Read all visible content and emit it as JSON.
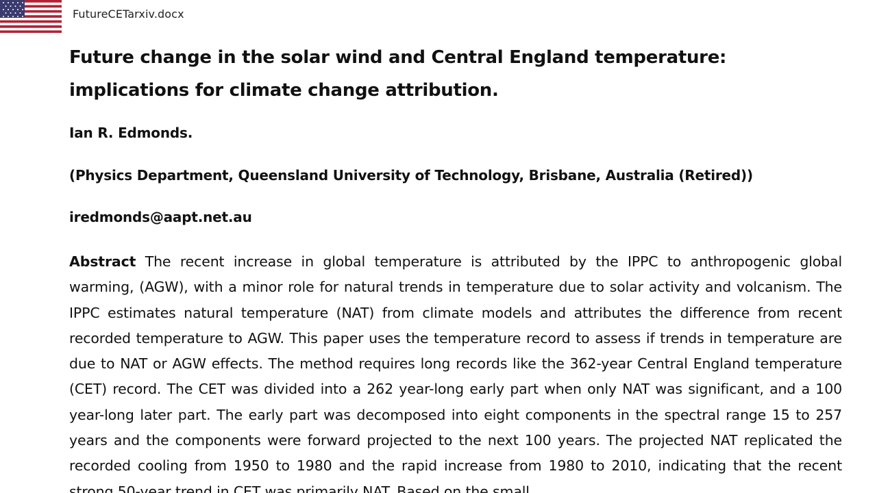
{
  "header": {
    "filename": "FutureCETarxiv.docx"
  },
  "document": {
    "title": "Future change in the solar wind and Central England temperature: implications for climate change attribution.",
    "author": "Ian R. Edmonds.",
    "affiliation": "(Physics Department, Queensland University of Technology, Brisbane, Australia (Retired))",
    "email": "iredmonds@aapt.net.au",
    "abstract_label": "Abstract",
    "abstract_text": "The recent increase in global temperature is attributed by the IPPC to anthropogenic global warming, (AGW), with a minor role for natural trends in temperature due to solar activity and volcanism. The IPPC estimates natural temperature (NAT) from climate models and attributes the difference from recent recorded temperature to AGW.  This paper uses the temperature record to assess if trends in temperature are due to NAT or AGW effects. The method requires long records like the 362-year Central England temperature (CET) record. The CET was divided into a 262 year-long early part when only NAT was significant, and a 100 year-long later part. The early part was decomposed into eight components in the spectral range 15 to 257 years and the components were forward projected to the next 100 years. The projected NAT replicated the recorded cooling from 1950 to 1980 and the rapid increase from 1980 to 2010, indicating that the recent strong 50-year trend in CET was primarily NAT. Based on the small"
  },
  "colors": {
    "text": "#111111",
    "background": "#ffffff",
    "flag_red": "#b22234",
    "flag_blue": "#3c3b6e"
  },
  "icons": {
    "flag": "us-flag-icon"
  }
}
